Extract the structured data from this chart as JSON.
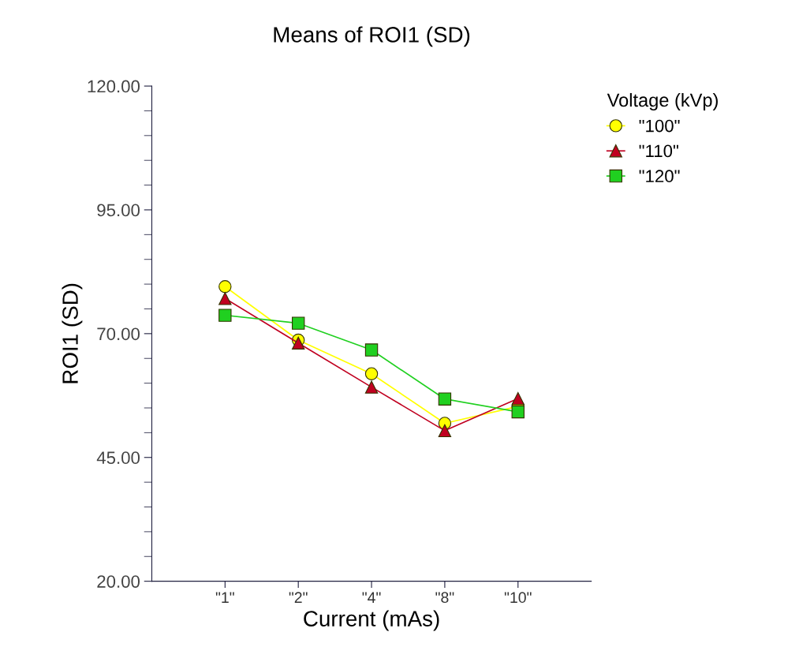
{
  "chart_data": {
    "type": "line",
    "title": "Means of ROI1 (SD)",
    "xlabel": "Current (mAs)",
    "ylabel": "ROI1 (SD)",
    "legend_title": "Voltage (kVp)",
    "categories": [
      "\"1\"",
      "\"2\"",
      "\"4\"",
      "\"8\"",
      "\"10\""
    ],
    "series": [
      {
        "name": "\"100\"",
        "color": "#ffff00",
        "marker": "circle",
        "values": [
          79.5,
          68.7,
          61.9,
          51.9,
          55.3
        ]
      },
      {
        "name": "\"110\"",
        "color": "#c00020",
        "marker": "triangle",
        "values": [
          77.1,
          68.1,
          59.2,
          50.4,
          56.9
        ]
      },
      {
        "name": "\"120\"",
        "color": "#20d020",
        "marker": "square",
        "values": [
          73.7,
          72.1,
          66.7,
          56.8,
          54.2
        ]
      }
    ],
    "ylim": [
      20,
      120
    ],
    "yticks": [
      {
        "value": 20,
        "label": "20.00"
      },
      {
        "value": 45,
        "label": "45.00"
      },
      {
        "value": 70,
        "label": "70.00"
      },
      {
        "value": 95,
        "label": "95.00"
      },
      {
        "value": 120,
        "label": "120.00"
      }
    ],
    "grid": false,
    "legend": "top right"
  }
}
